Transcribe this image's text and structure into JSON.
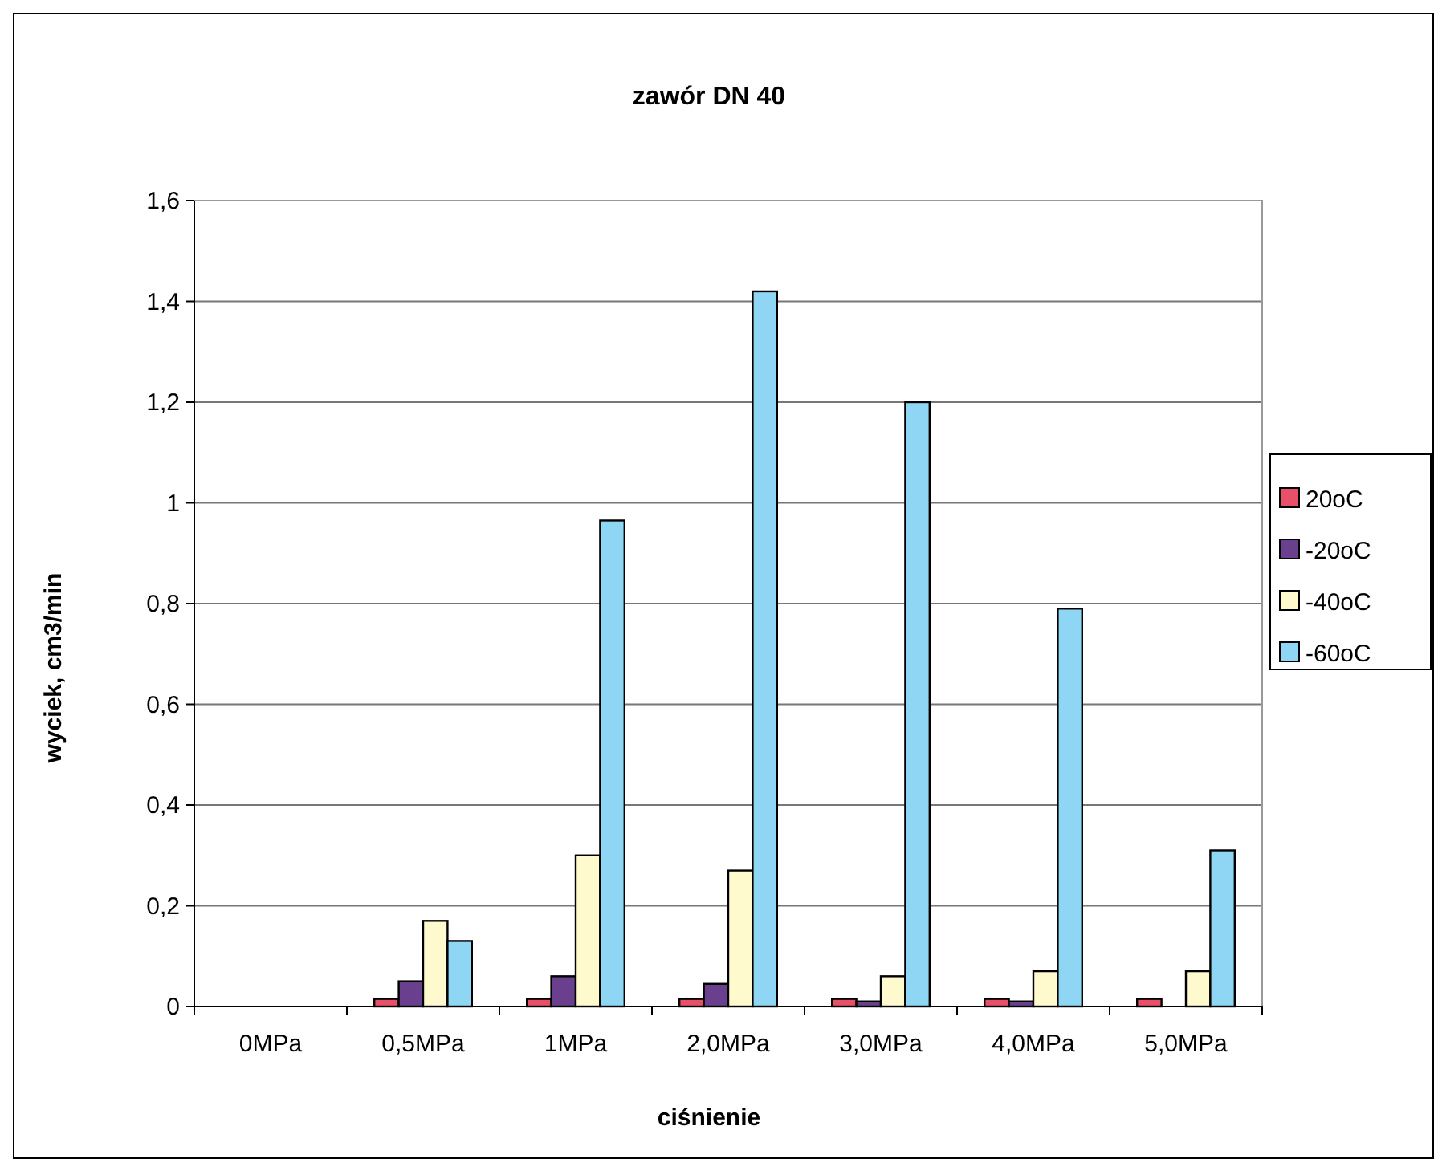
{
  "chart_data": {
    "type": "bar",
    "title": "zawór DN 40",
    "xlabel": "ciśnienie",
    "ylabel": "wyciek, cm3/min",
    "categories": [
      "0MPa",
      "0,5MPa",
      "1MPa",
      "2,0MPa",
      "3,0MPa",
      "4,0MPa",
      "5,0MPa"
    ],
    "series": [
      {
        "name": "20oC",
        "color": "#e8506a",
        "values": [
          0,
          0.015,
          0.015,
          0.015,
          0.015,
          0.015,
          0.015
        ]
      },
      {
        "name": "-20oC",
        "color": "#6a3f8e",
        "values": [
          0,
          0.05,
          0.06,
          0.045,
          0.01,
          0.01,
          0
        ]
      },
      {
        "name": "-40oC",
        "color": "#fffacd",
        "values": [
          0,
          0.17,
          0.3,
          0.27,
          0.06,
          0.07,
          0.07
        ]
      },
      {
        "name": "-60oC",
        "color": "#8fd6f4",
        "values": [
          0,
          0.13,
          0.965,
          1.42,
          1.2,
          0.79,
          0.31
        ]
      }
    ],
    "ylim": [
      0,
      1.6
    ],
    "yticks": [
      {
        "value": 0,
        "label": "0"
      },
      {
        "value": 0.2,
        "label": "0,2"
      },
      {
        "value": 0.4,
        "label": "0,4"
      },
      {
        "value": 0.6,
        "label": "0,6"
      },
      {
        "value": 0.8,
        "label": "0,8"
      },
      {
        "value": 1,
        "label": "1"
      },
      {
        "value": 1.2,
        "label": "1,2"
      },
      {
        "value": 1.4,
        "label": "1,4"
      },
      {
        "value": 1.6,
        "label": "1,6"
      }
    ],
    "grid": "y",
    "legend": "right"
  }
}
